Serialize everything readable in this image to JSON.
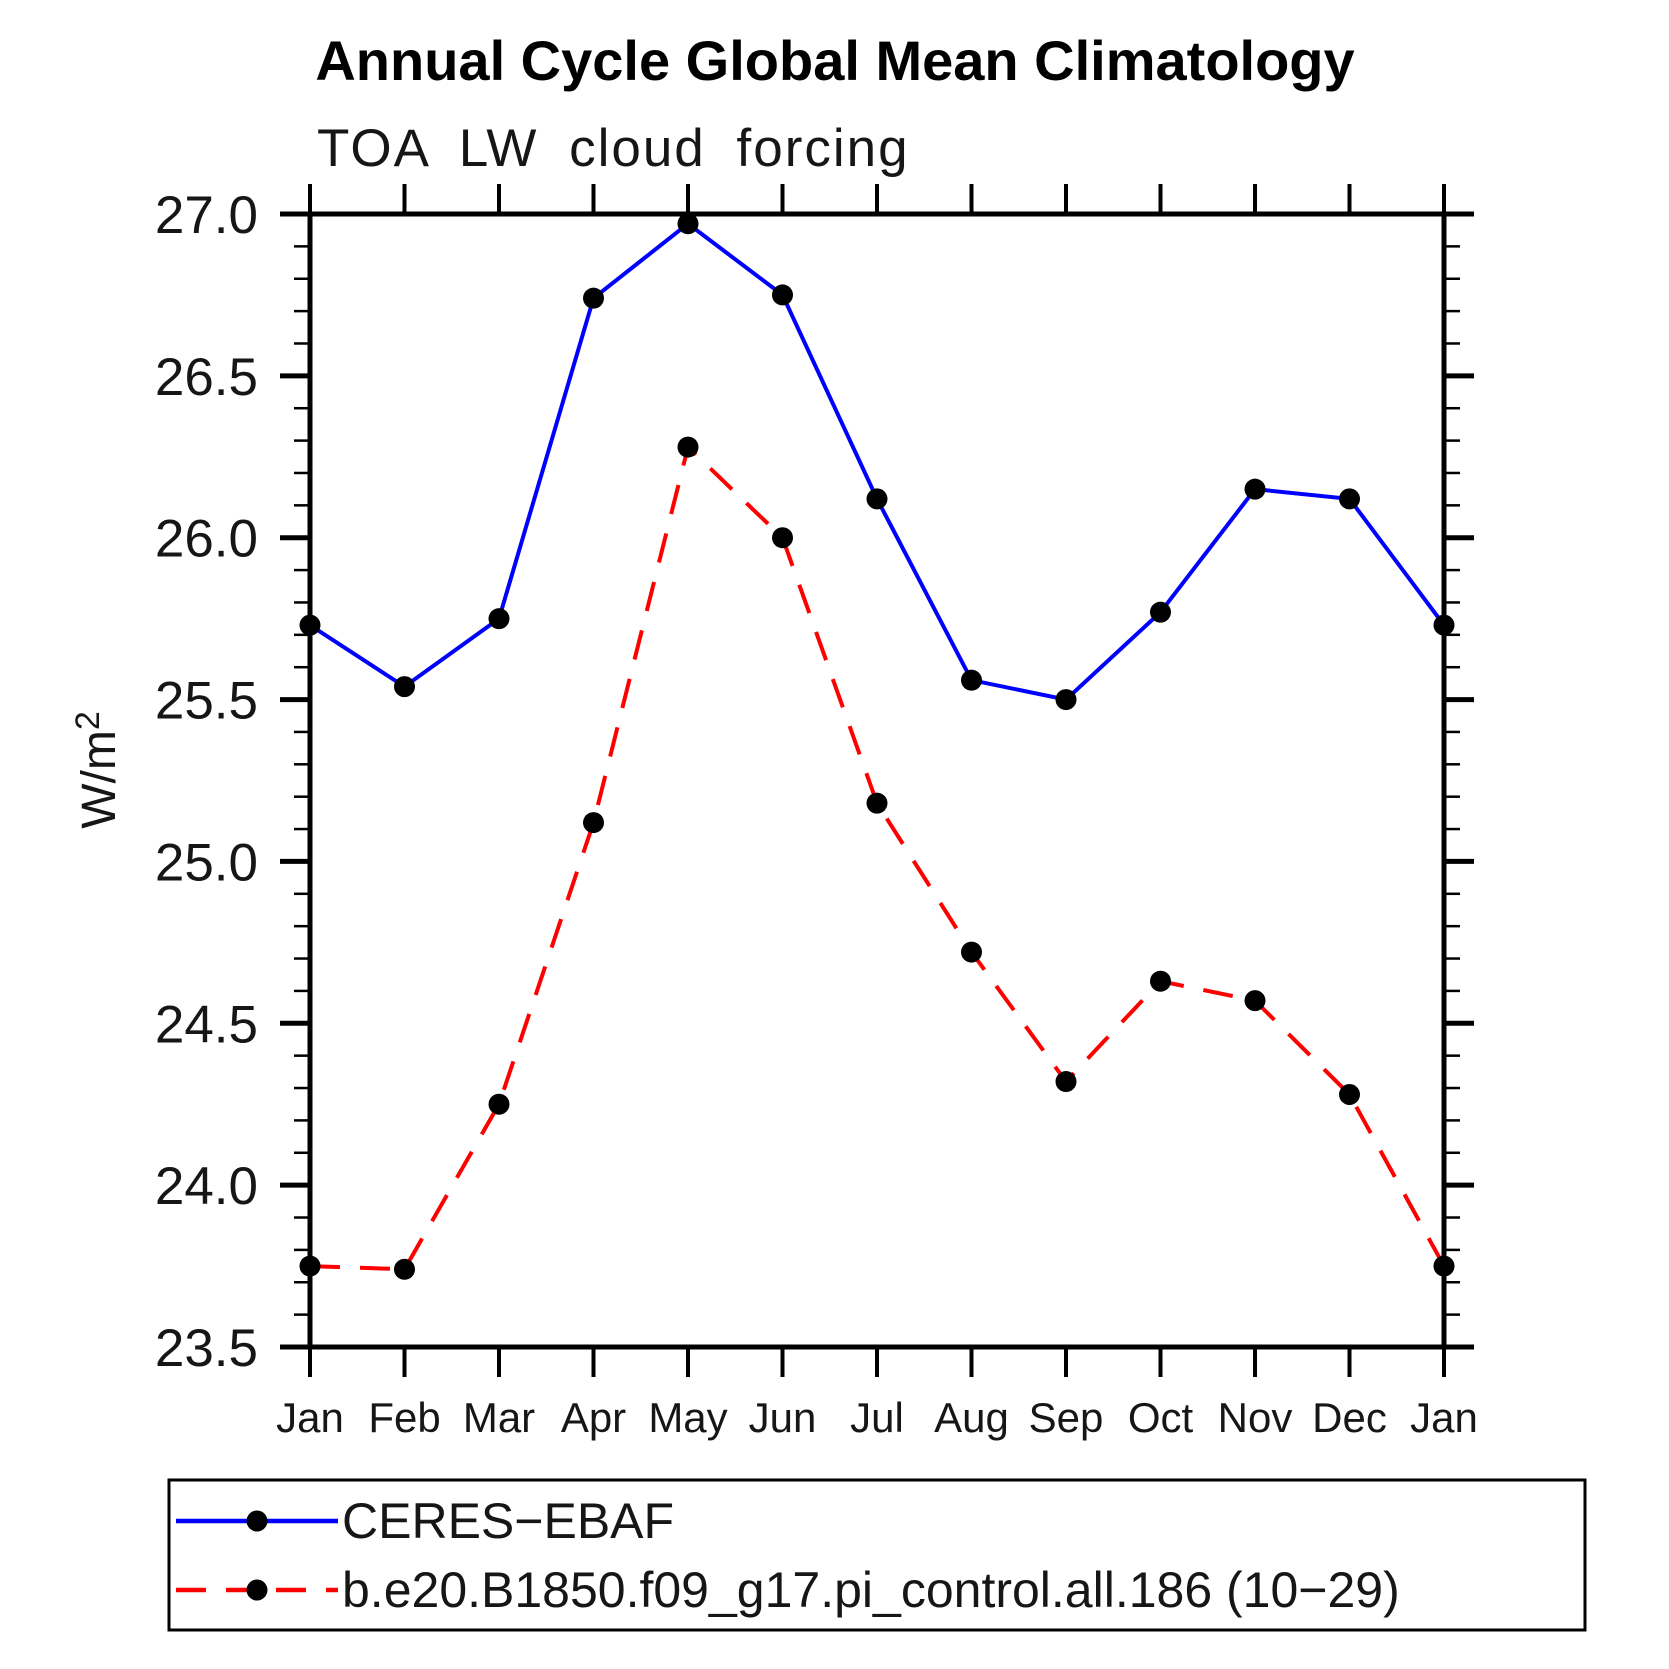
{
  "chart_data": {
    "type": "line",
    "title": "Annual Cycle Global Mean Climatology",
    "subtitle": "TOA LW cloud forcing",
    "ylabel": "W/m²",
    "ylabel_base": "W/m",
    "ylabel_exponent": "2",
    "categories": [
      "Jan",
      "Feb",
      "Mar",
      "Apr",
      "May",
      "Jun",
      "Jul",
      "Aug",
      "Sep",
      "Oct",
      "Nov",
      "Dec",
      "Jan"
    ],
    "ylim": [
      23.5,
      27.0
    ],
    "y_major_tick_step": 0.5,
    "y_minor_tick_step": 0.1,
    "y_tick_labels": [
      "23.5",
      "24.0",
      "24.5",
      "25.0",
      "25.5",
      "26.0",
      "26.5",
      "27.0"
    ],
    "grid": false,
    "legend_position": "bottom-left box",
    "axis_color": "#000000",
    "marker_shape": "filled-circle",
    "series": [
      {
        "name": "CERES−EBAF",
        "color": "#0000ff",
        "line_style": "solid",
        "marker_color": "#000000",
        "values": [
          25.73,
          25.54,
          25.75,
          26.74,
          26.97,
          26.75,
          26.12,
          25.56,
          25.5,
          25.77,
          26.15,
          26.12,
          25.73
        ]
      },
      {
        "name": "b.e20.B1850.f09_g17.pi_control.all.186 (10−29)",
        "color": "#ff0000",
        "line_style": "dashed",
        "marker_color": "#000000",
        "values": [
          23.75,
          23.74,
          24.25,
          25.12,
          26.28,
          26.0,
          25.18,
          24.72,
          24.32,
          24.63,
          24.57,
          24.28,
          23.75
        ]
      }
    ]
  }
}
